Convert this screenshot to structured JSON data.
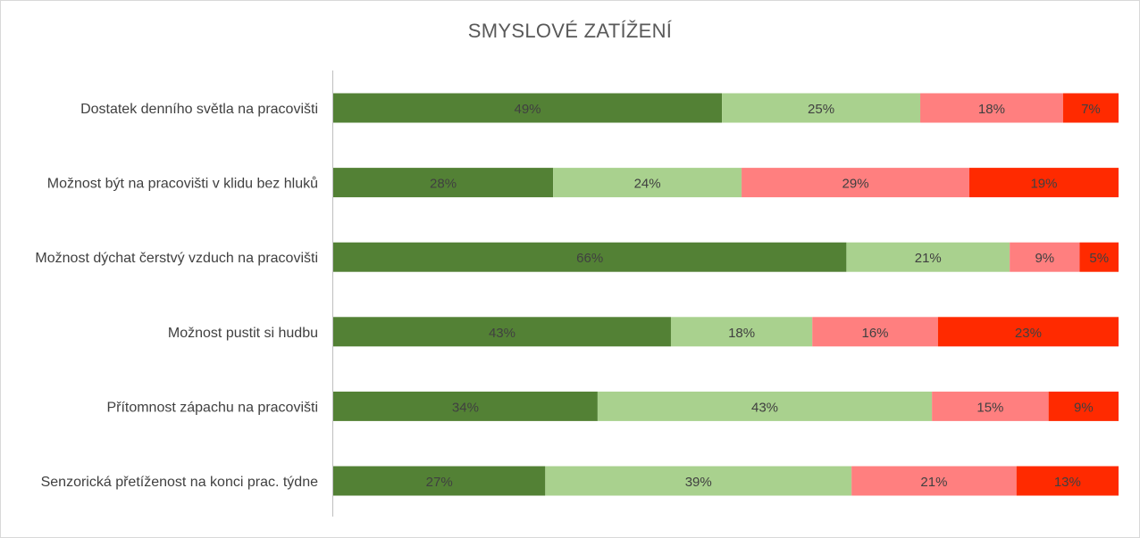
{
  "chart_data": {
    "type": "bar",
    "orientation": "horizontal",
    "stacked": true,
    "title": "SMYSLOVÉ ZATÍŽENÍ",
    "categories": [
      "Dostatek denního světla na pracovišti",
      "Možnost být na pracovišti v klidu bez hluků",
      "Možnost dýchat čerstvý vzduch na pracovišti",
      "Možnost pustit si hudbu",
      "Přítomnost zápachu na pracovišti",
      "Senzorická přetíženost na konci prac. týdne"
    ],
    "series": [
      {
        "color": "#538135",
        "values": [
          49,
          28,
          66,
          43,
          34,
          27
        ]
      },
      {
        "color": "#a9d18e",
        "values": [
          25,
          24,
          21,
          18,
          43,
          39
        ]
      },
      {
        "color": "#ff7f7f",
        "values": [
          18,
          29,
          9,
          16,
          15,
          21
        ]
      },
      {
        "color": "#ff2a00",
        "values": [
          7,
          19,
          5,
          23,
          9,
          13
        ]
      }
    ],
    "value_suffix": "%",
    "legend": "none",
    "grid": false
  }
}
